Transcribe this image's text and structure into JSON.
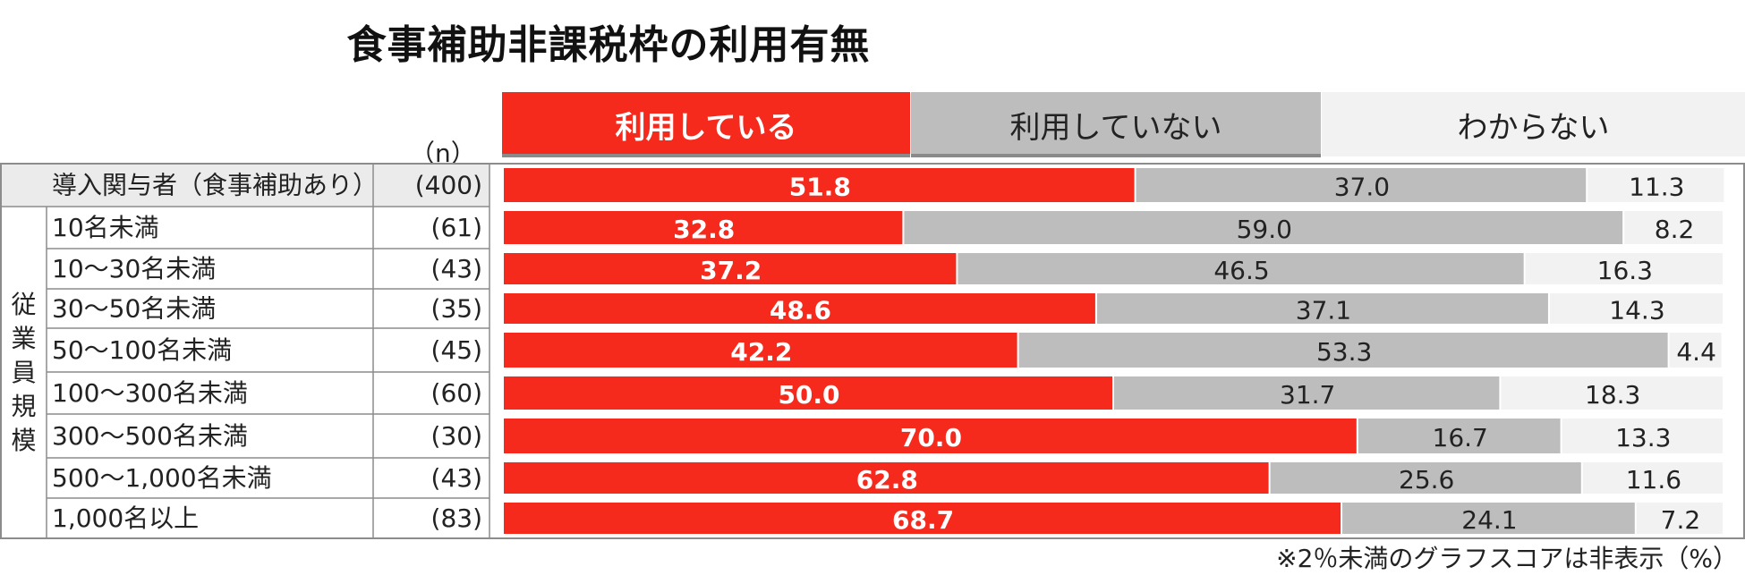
{
  "chart_data": {
    "type": "bar",
    "stacked": true,
    "orientation": "horizontal",
    "title": "食事補助非課税枠の利用有無",
    "unit_note": "※2％未満のグラフスコアは非表示（%）",
    "n_header": "（n）",
    "group_label": "従業員規模",
    "legend_position": "top",
    "xlim": [
      0,
      100
    ],
    "series": [
      {
        "name": "利用している",
        "color": "#f52a1c",
        "label_color": "#ffffff"
      },
      {
        "name": "利用していない",
        "color": "#bdbdbd",
        "label_color": "#222222"
      },
      {
        "name": "わからない",
        "color": "#f2f2f2",
        "label_color": "#222222"
      }
    ],
    "rows": [
      {
        "label": "導入関与者（食事補助あり）",
        "n": "(400)",
        "values": [
          51.8,
          37.0,
          11.3
        ],
        "labels": [
          "51.8",
          "37.0",
          "11.3"
        ],
        "header": true
      },
      {
        "label": "10名未満",
        "n": "(61)",
        "values": [
          32.8,
          59.0,
          8.2
        ],
        "labels": [
          "32.8",
          "59.0",
          "8.2"
        ]
      },
      {
        "label": "10～30名未満",
        "n": "(43)",
        "values": [
          37.2,
          46.5,
          16.3
        ],
        "labels": [
          "37.2",
          "46.5",
          "16.3"
        ]
      },
      {
        "label": "30～50名未満",
        "n": "(35)",
        "values": [
          48.6,
          37.1,
          14.3
        ],
        "labels": [
          "48.6",
          "37.1",
          "14.3"
        ]
      },
      {
        "label": "50～100名未満",
        "n": "(45)",
        "values": [
          42.2,
          53.3,
          4.4
        ],
        "labels": [
          "42.2",
          "53.3",
          "4.4"
        ]
      },
      {
        "label": "100～300名未満",
        "n": "(60)",
        "values": [
          50.0,
          31.7,
          18.3
        ],
        "labels": [
          "50.0",
          "31.7",
          "18.3"
        ]
      },
      {
        "label": "300～500名未満",
        "n": "(30)",
        "values": [
          70.0,
          16.7,
          13.3
        ],
        "labels": [
          "70.0",
          "16.7",
          "13.3"
        ]
      },
      {
        "label": "500～1,000名未満",
        "n": "(43)",
        "values": [
          62.8,
          25.6,
          11.6
        ],
        "labels": [
          "62.8",
          "25.6",
          "11.6"
        ]
      },
      {
        "label": "1,000名以上",
        "n": "(83)",
        "values": [
          68.7,
          24.1,
          7.2
        ],
        "labels": [
          "68.7",
          "24.1",
          "7.2"
        ]
      }
    ]
  }
}
